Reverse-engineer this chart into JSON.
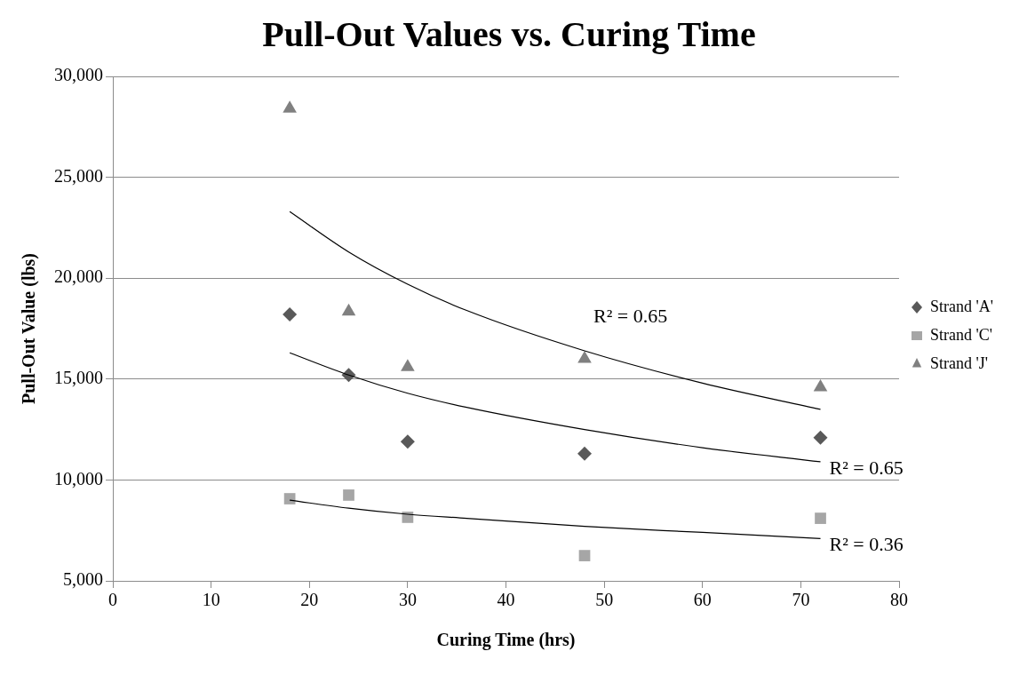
{
  "chart_data": {
    "type": "scatter",
    "title": "Pull-Out Values vs. Curing Time",
    "xlabel": "Curing Time (hrs)",
    "ylabel": "Pull-Out Value (lbs)",
    "x": [
      18,
      24,
      30,
      48,
      72
    ],
    "series": [
      {
        "name": "Strand 'A'",
        "color": "#595959",
        "marker": "diamond",
        "values": [
          18200,
          15200,
          11900,
          11300,
          12100
        ]
      },
      {
        "name": "Strand 'C'",
        "color": "#a6a6a6",
        "marker": "square",
        "values": [
          9070,
          9250,
          8150,
          6250,
          8100
        ]
      },
      {
        "name": "Strand 'J'",
        "color": "#808080",
        "marker": "triangle",
        "values": [
          28400,
          18350,
          15600,
          16000,
          14600
        ]
      },
      {
        "type": "line",
        "color": "#000000",
        "marker": "none",
        "x": [
          18,
          24,
          30,
          36,
          48,
          60,
          72
        ],
        "values": [
          23300,
          21300,
          19700,
          18400,
          16400,
          14800,
          13500
        ]
      },
      {
        "type": "line",
        "color": "#000000",
        "marker": "none",
        "x": [
          18,
          24,
          30,
          36,
          48,
          60,
          72
        ],
        "values": [
          16300,
          15200,
          14300,
          13600,
          12500,
          11600,
          10900
        ]
      },
      {
        "type": "line",
        "color": "#000000",
        "marker": "none",
        "x": [
          18,
          24,
          30,
          36,
          48,
          60,
          72
        ],
        "values": [
          9000,
          8600,
          8300,
          8100,
          7700,
          7400,
          7100
        ]
      }
    ],
    "xlim": [
      0,
      80
    ],
    "xticks": [
      0,
      10,
      20,
      30,
      40,
      50,
      60,
      70,
      80
    ],
    "ylim": [
      5000,
      30000
    ],
    "yticks": [
      {
        "value": 5000,
        "label": "5,000"
      },
      {
        "value": 10000,
        "label": "10,000"
      },
      {
        "value": 15000,
        "label": "15,000"
      },
      {
        "value": 20000,
        "label": "20,000"
      },
      {
        "value": 25000,
        "label": "25,000"
      },
      {
        "value": 30000,
        "label": "30,000"
      }
    ],
    "grid": "y",
    "legend": "right",
    "annotations": [
      "R² = 0.65",
      "R² = 0.65",
      "R² = 0.36"
    ]
  }
}
